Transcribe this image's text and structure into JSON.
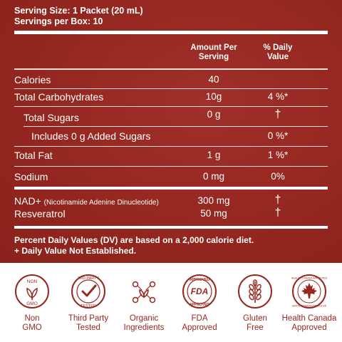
{
  "serving": {
    "size": "Serving Size: 1 Packet (20 mL)",
    "per_box": "Servings per Box: 10"
  },
  "columns": {
    "amount": "Amount Per Serving",
    "amount_l1": "Amount Per",
    "amount_l2": "Serving",
    "dv_l1": "% Daily",
    "dv_l2": "Value"
  },
  "rows": [
    {
      "label": "Calories",
      "amount": "40",
      "dv": ""
    },
    {
      "label": "Total Carbohydrates",
      "amount": "10g",
      "dv": "4 %*"
    },
    {
      "label": "Total Sugars",
      "amount": "0 g",
      "dv": "†"
    },
    {
      "label": "Includes 0 g Added Sugars",
      "amount": "",
      "dv": "0 %*"
    },
    {
      "label": "Total Fat",
      "amount": "1 g",
      "dv": "1 %*"
    },
    {
      "label": "Sodium",
      "amount": "0 mg",
      "dv": "0%"
    },
    {
      "label": "NAD+",
      "label_small": "(Nicotinamide Adenine Dinucleotide)",
      "amount": "300 mg",
      "dv": "†"
    },
    {
      "label": "Resveratrol",
      "amount": "50 mg",
      "dv": "†"
    }
  ],
  "footnotes": {
    "line1": "Percent Daily Values (DV) are based on a 2,000 calorie diet.",
    "line2": "+ Daily Value Not Established."
  },
  "badges": [
    {
      "icon": "non-gmo-icon",
      "line1": "Non",
      "line2": "GMO",
      "ring_top": "NON",
      "ring_bottom": "GMO"
    },
    {
      "icon": "third-party-tested-icon",
      "line1": "Third Party",
      "line2": "Tested",
      "ring_top": "3RD PARTY",
      "ring_bottom": "TESTED"
    },
    {
      "icon": "organic-ingredients-icon",
      "line1": "Organic",
      "line2": "Ingredients"
    },
    {
      "icon": "fda-approved-icon",
      "line1": "FDA",
      "line2": "Approved",
      "ring_top": "APPROVED",
      "ring_mid": "FDA",
      "ring_bottom": "APPROVED"
    },
    {
      "icon": "gluten-free-icon",
      "line1": "Gluten",
      "line2": "Free"
    },
    {
      "icon": "health-canada-icon",
      "line1": "Health Canada",
      "line2": "Approved",
      "ring_top": "HEALTH CANADA APPROVED",
      "ring_bottom": "SANTÉ CANADA APPROUVÉ"
    }
  ],
  "colors": {
    "panel_bg": "#962820",
    "text_on_panel": "#ffffff",
    "badge_accent": "#962820"
  }
}
